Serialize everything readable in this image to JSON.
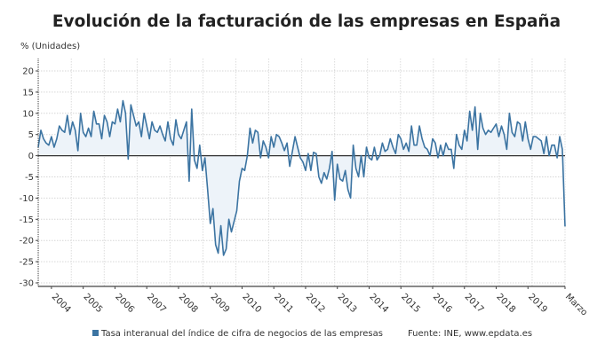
{
  "chart_data": {
    "type": "area",
    "title": "Evolución de la facturación de las empresas en España",
    "ylabel": "% (Unidades)",
    "xlabel": "",
    "ylim": [
      -30,
      22
    ],
    "yticks": [
      20,
      15,
      10,
      5,
      0,
      -5,
      -10,
      -15,
      -20,
      -25,
      -30
    ],
    "xtick_labels": [
      "2004",
      "2005",
      "2006",
      "2007",
      "2008",
      "2009",
      "2010",
      "2011",
      "2012",
      "2013",
      "2014",
      "2015",
      "2016",
      "2017",
      "2018",
      "2019",
      "Marzo"
    ],
    "grid": true,
    "legend_position": "bottom",
    "colors": {
      "line": "#3c74a2",
      "fill": "#edf3f9",
      "zero_line": "#333333",
      "legend_swatch": "#3c74a2"
    },
    "series": [
      {
        "name": "Tasa interanual del índice de cifra de negocios de las empresas",
        "x": [
          "2003-08",
          "2003-09",
          "2003-10",
          "2003-11",
          "2003-12",
          "2004-01",
          "2004-02",
          "2004-03",
          "2004-04",
          "2004-05",
          "2004-06",
          "2004-07",
          "2004-08",
          "2004-09",
          "2004-10",
          "2004-11",
          "2004-12",
          "2005-01",
          "2005-02",
          "2005-03",
          "2005-04",
          "2005-05",
          "2005-06",
          "2005-07",
          "2005-08",
          "2005-09",
          "2005-10",
          "2005-11",
          "2005-12",
          "2006-01",
          "2006-02",
          "2006-03",
          "2006-04",
          "2006-05",
          "2006-06",
          "2006-07",
          "2006-08",
          "2006-09",
          "2006-10",
          "2006-11",
          "2006-12",
          "2007-01",
          "2007-02",
          "2007-03",
          "2007-04",
          "2007-05",
          "2007-06",
          "2007-07",
          "2007-08",
          "2007-09",
          "2007-10",
          "2007-11",
          "2007-12",
          "2008-01",
          "2008-02",
          "2008-03",
          "2008-04",
          "2008-05",
          "2008-06",
          "2008-07",
          "2008-08",
          "2008-09",
          "2008-10",
          "2008-11",
          "2008-12",
          "2009-01",
          "2009-02",
          "2009-03",
          "2009-04",
          "2009-05",
          "2009-06",
          "2009-07",
          "2009-08",
          "2009-09",
          "2009-10",
          "2009-11",
          "2009-12",
          "2010-01",
          "2010-02",
          "2010-03",
          "2010-04",
          "2010-05",
          "2010-06",
          "2010-07",
          "2010-08",
          "2010-09",
          "2010-10",
          "2010-11",
          "2010-12",
          "2011-01",
          "2011-02",
          "2011-03",
          "2011-04",
          "2011-05",
          "2011-06",
          "2011-07",
          "2011-08",
          "2011-09",
          "2011-10",
          "2011-11",
          "2011-12",
          "2012-01",
          "2012-02",
          "2012-03",
          "2012-04",
          "2012-05",
          "2012-06",
          "2012-07",
          "2012-08",
          "2012-09",
          "2012-10",
          "2012-11",
          "2012-12",
          "2013-01",
          "2013-02",
          "2013-03",
          "2013-04",
          "2013-05",
          "2013-06",
          "2013-07",
          "2013-08",
          "2013-09",
          "2013-10",
          "2013-11",
          "2013-12",
          "2014-01",
          "2014-02",
          "2014-03",
          "2014-04",
          "2014-05",
          "2014-06",
          "2014-07",
          "2014-08",
          "2014-09",
          "2014-10",
          "2014-11",
          "2014-12",
          "2015-01",
          "2015-02",
          "2015-03",
          "2015-04",
          "2015-05",
          "2015-06",
          "2015-07",
          "2015-08",
          "2015-09",
          "2015-10",
          "2015-11",
          "2015-12",
          "2016-01",
          "2016-02",
          "2016-03",
          "2016-04",
          "2016-05",
          "2016-06",
          "2016-07",
          "2016-08",
          "2016-09",
          "2016-10",
          "2016-11",
          "2016-12",
          "2017-01",
          "2017-02",
          "2017-03",
          "2017-04",
          "2017-05",
          "2017-06",
          "2017-07",
          "2017-08",
          "2017-09",
          "2017-10",
          "2017-11",
          "2017-12",
          "2018-01",
          "2018-02",
          "2018-03",
          "2018-04",
          "2018-05",
          "2018-06",
          "2018-07",
          "2018-08",
          "2018-09",
          "2018-10",
          "2018-11",
          "2018-12",
          "2019-01",
          "2019-02",
          "2019-03",
          "2019-04",
          "2019-05",
          "2019-06",
          "2019-07",
          "2019-08",
          "2019-09",
          "2019-10",
          "2019-11",
          "2019-12",
          "2020-01",
          "2020-02",
          "2020-03"
        ],
        "values": [
          2,
          6,
          4,
          3,
          2.5,
          4.5,
          2,
          4,
          7,
          6,
          5.5,
          9.5,
          5,
          8,
          6,
          1.2,
          10,
          5.5,
          4.5,
          6.5,
          4.5,
          10.5,
          7.5,
          7.5,
          4,
          9.5,
          8,
          4.5,
          8,
          7.5,
          11,
          8,
          13,
          10,
          -0.8,
          12,
          9.5,
          7,
          8,
          4.5,
          10,
          7,
          4,
          8,
          6,
          5.5,
          7,
          5,
          3.5,
          8,
          4,
          2.5,
          8.5,
          5,
          4,
          6,
          8,
          -6,
          11,
          -1,
          -3,
          2.5,
          -3.5,
          -0.5,
          -8,
          -16,
          -12.5,
          -21,
          -23,
          -16.5,
          -23.5,
          -22,
          -15,
          -18,
          -15.5,
          -13,
          -6,
          -3,
          -3.5,
          0,
          6.5,
          3,
          6,
          5.5,
          -0.5,
          3.5,
          2,
          -0.5,
          4.5,
          2,
          5,
          4.5,
          3,
          1.2,
          3,
          -2.5,
          1,
          4.5,
          2,
          -0.5,
          -1.5,
          -3.5,
          0.5,
          -3.5,
          0.8,
          0.5,
          -5,
          -6.5,
          -4,
          -5.5,
          -3,
          1,
          -10.5,
          -2,
          -5.5,
          -6,
          -3.5,
          -8,
          -10,
          2.5,
          -3,
          -5,
          0,
          -5,
          2,
          -0.5,
          -1,
          2,
          -1,
          0,
          3,
          1,
          1.5,
          4,
          2,
          0.5,
          5,
          4,
          1.5,
          3,
          1,
          7,
          2.5,
          2.5,
          7,
          4,
          2,
          1.5,
          0,
          4,
          3,
          -0.5,
          2.5,
          0,
          3,
          1.5,
          1.5,
          -3,
          5,
          2.5,
          1.5,
          6,
          3.5,
          10.5,
          6,
          11.5,
          1.5,
          10,
          6.5,
          5,
          6,
          5.5,
          6.5,
          7.5,
          4.5,
          7,
          5,
          1.5,
          10,
          5.5,
          4.5,
          8,
          7.5,
          3.5,
          8,
          4,
          1.5,
          4.5,
          4.5,
          4,
          3.5,
          0.5,
          4.5,
          0,
          2.5,
          2.5,
          -0.5,
          4.5,
          1.5,
          -16.7
        ]
      }
    ],
    "source": "Fuente: INE, www.epdata.es"
  }
}
